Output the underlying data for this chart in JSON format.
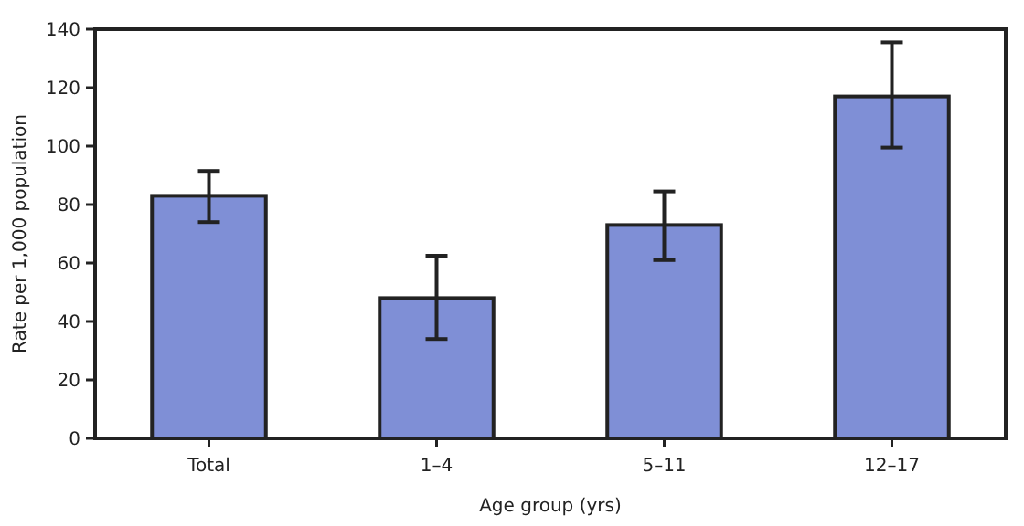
{
  "chart_data": {
    "type": "bar",
    "xlabel": "Age group (yrs)",
    "ylabel": "Rate per 1,000 population",
    "categories": [
      "Total",
      "1–4",
      "5–11",
      "12–17"
    ],
    "values": [
      83,
      48,
      73,
      117
    ],
    "color": "#7f8fd6",
    "errors": [
      [
        74,
        91.5
      ],
      [
        34,
        62.5
      ],
      [
        61,
        84.5
      ],
      [
        99.5,
        135.5
      ]
    ],
    "ylim": [
      0,
      140
    ],
    "yticks": [
      0,
      20,
      40,
      60,
      80,
      100,
      120,
      140
    ],
    "grid": false
  }
}
